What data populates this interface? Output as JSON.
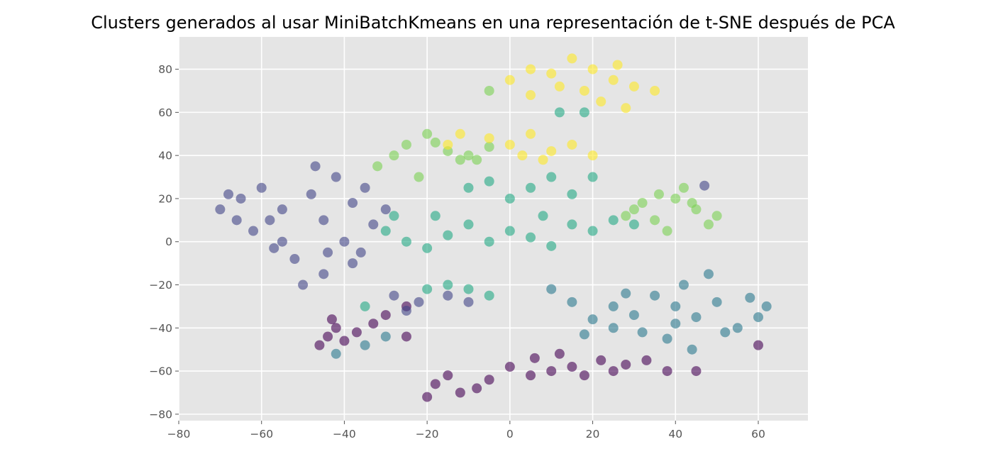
{
  "chart_data": {
    "type": "scatter",
    "title": "Clusters generados al usar MiniBatchKmeans en una representación de t-SNE después de PCA",
    "xlabel": "",
    "ylabel": "",
    "xlim": [
      -80,
      72
    ],
    "ylim": [
      -83,
      95
    ],
    "x_ticks": [
      -80,
      -60,
      -40,
      -20,
      0,
      20,
      40,
      60
    ],
    "y_ticks": [
      -80,
      -60,
      -40,
      -20,
      0,
      20,
      40,
      60,
      80
    ],
    "x_tick_labels": [
      "−80",
      "−60",
      "−40",
      "−20",
      "0",
      "20",
      "40",
      "60"
    ],
    "y_tick_labels": [
      "−80",
      "−60",
      "−40",
      "−20",
      "0",
      "20",
      "40",
      "60",
      "80"
    ],
    "grid": true,
    "legend": "none",
    "style": "ggplot",
    "point_alpha": 0.6,
    "colormap": "viridis",
    "series": [
      {
        "color": "#440154",
        "points": [
          [
            -44,
            -44
          ],
          [
            -42,
            -40
          ],
          [
            -46,
            -48
          ],
          [
            -40,
            -46
          ],
          [
            -43,
            -36
          ],
          [
            -30,
            -34
          ],
          [
            -25,
            -30
          ],
          [
            -33,
            -38
          ],
          [
            -37,
            -42
          ],
          [
            -18,
            -66
          ],
          [
            -12,
            -70
          ],
          [
            -5,
            -64
          ],
          [
            0,
            -58
          ],
          [
            5,
            -62
          ],
          [
            10,
            -60
          ],
          [
            15,
            -58
          ],
          [
            22,
            -55
          ],
          [
            28,
            -57
          ],
          [
            33,
            -55
          ],
          [
            38,
            -60
          ],
          [
            -20,
            -72
          ],
          [
            -8,
            -68
          ],
          [
            6,
            -54
          ],
          [
            -15,
            -62
          ],
          [
            18,
            -62
          ],
          [
            12,
            -52
          ],
          [
            25,
            -60
          ],
          [
            -25,
            -44
          ],
          [
            45,
            -60
          ],
          [
            60,
            -48
          ]
        ]
      },
      {
        "color": "#414487",
        "points": [
          [
            -70,
            15
          ],
          [
            -65,
            20
          ],
          [
            -60,
            25
          ],
          [
            -58,
            10
          ],
          [
            -55,
            0
          ],
          [
            -52,
            -8
          ],
          [
            -48,
            22
          ],
          [
            -45,
            10
          ],
          [
            -42,
            30
          ],
          [
            -40,
            0
          ],
          [
            -38,
            18
          ],
          [
            -35,
            25
          ],
          [
            -33,
            8
          ],
          [
            -38,
            -10
          ],
          [
            -45,
            -15
          ],
          [
            -50,
            -20
          ],
          [
            -62,
            5
          ],
          [
            -68,
            22
          ],
          [
            -30,
            15
          ],
          [
            -28,
            -25
          ],
          [
            -22,
            -28
          ],
          [
            -15,
            -25
          ],
          [
            -10,
            -28
          ],
          [
            -25,
            -32
          ],
          [
            -55,
            15
          ],
          [
            -47,
            35
          ],
          [
            -36,
            -5
          ],
          [
            -44,
            -5
          ],
          [
            -57,
            -3
          ],
          [
            -66,
            10
          ],
          [
            47,
            26
          ]
        ]
      },
      {
        "color": "#2a788e",
        "points": [
          [
            10,
            -22
          ],
          [
            15,
            -28
          ],
          [
            20,
            -36
          ],
          [
            25,
            -30
          ],
          [
            30,
            -34
          ],
          [
            35,
            -25
          ],
          [
            40,
            -30
          ],
          [
            45,
            -35
          ],
          [
            50,
            -28
          ],
          [
            55,
            -40
          ],
          [
            60,
            -35
          ],
          [
            62,
            -30
          ],
          [
            38,
            -45
          ],
          [
            42,
            -20
          ],
          [
            48,
            -15
          ],
          [
            25,
            -40
          ],
          [
            32,
            -42
          ],
          [
            18,
            -43
          ],
          [
            52,
            -42
          ],
          [
            58,
            -26
          ],
          [
            44,
            -50
          ],
          [
            40,
            -38
          ],
          [
            28,
            -24
          ],
          [
            -42,
            -52
          ],
          [
            -35,
            -48
          ],
          [
            -30,
            -44
          ]
        ]
      },
      {
        "color": "#22a884",
        "points": [
          [
            -30,
            5
          ],
          [
            -25,
            0
          ],
          [
            -20,
            -3
          ],
          [
            -15,
            3
          ],
          [
            -10,
            8
          ],
          [
            -5,
            0
          ],
          [
            0,
            5
          ],
          [
            5,
            2
          ],
          [
            10,
            -2
          ],
          [
            15,
            8
          ],
          [
            20,
            5
          ],
          [
            25,
            10
          ],
          [
            30,
            8
          ],
          [
            5,
            25
          ],
          [
            10,
            30
          ],
          [
            0,
            20
          ],
          [
            15,
            22
          ],
          [
            20,
            30
          ],
          [
            -10,
            25
          ],
          [
            -5,
            28
          ],
          [
            -20,
            -22
          ],
          [
            -15,
            -20
          ],
          [
            -10,
            -22
          ],
          [
            -5,
            -25
          ],
          [
            12,
            60
          ],
          [
            18,
            60
          ],
          [
            -35,
            -30
          ],
          [
            -28,
            12
          ],
          [
            -18,
            12
          ],
          [
            8,
            12
          ]
        ]
      },
      {
        "color": "#7ad151",
        "points": [
          [
            -25,
            45
          ],
          [
            -20,
            50
          ],
          [
            -28,
            40
          ],
          [
            -15,
            42
          ],
          [
            -8,
            38
          ],
          [
            -5,
            44
          ],
          [
            30,
            15
          ],
          [
            35,
            10
          ],
          [
            40,
            20
          ],
          [
            45,
            15
          ],
          [
            50,
            12
          ],
          [
            38,
            5
          ],
          [
            42,
            25
          ],
          [
            32,
            18
          ],
          [
            48,
            8
          ],
          [
            -32,
            35
          ],
          [
            -22,
            30
          ],
          [
            -12,
            38
          ],
          [
            -5,
            70
          ],
          [
            -10,
            40
          ],
          [
            44,
            18
          ],
          [
            36,
            22
          ],
          [
            -18,
            46
          ],
          [
            28,
            12
          ]
        ]
      },
      {
        "color": "#fde725",
        "points": [
          [
            0,
            75
          ],
          [
            5,
            80
          ],
          [
            10,
            78
          ],
          [
            15,
            85
          ],
          [
            20,
            80
          ],
          [
            25,
            75
          ],
          [
            30,
            72
          ],
          [
            35,
            70
          ],
          [
            18,
            70
          ],
          [
            22,
            65
          ],
          [
            28,
            62
          ],
          [
            5,
            68
          ],
          [
            0,
            45
          ],
          [
            5,
            50
          ],
          [
            10,
            42
          ],
          [
            15,
            45
          ],
          [
            20,
            40
          ],
          [
            -5,
            48
          ],
          [
            -15,
            45
          ],
          [
            -12,
            50
          ],
          [
            12,
            72
          ],
          [
            26,
            82
          ],
          [
            8,
            38
          ],
          [
            3,
            40
          ]
        ]
      }
    ]
  }
}
